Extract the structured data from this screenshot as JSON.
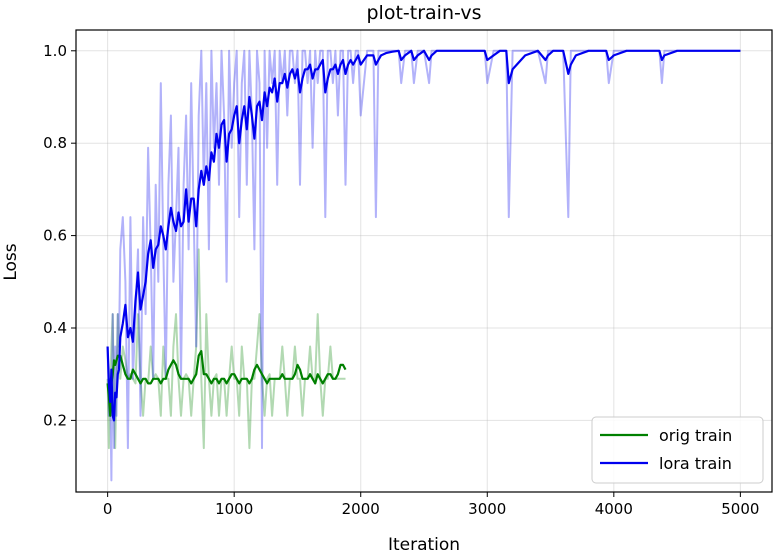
{
  "chart_data": {
    "type": "line",
    "title": "plot-train-vs",
    "xlabel": "Iteration",
    "ylabel": "Loss",
    "xlim": [
      -250,
      5250
    ],
    "ylim": [
      0.045,
      1.045
    ],
    "xticks": [
      0,
      1000,
      2000,
      3000,
      4000,
      5000
    ],
    "yticks": [
      0.2,
      0.4,
      0.6,
      0.8,
      1.0
    ],
    "xtick_labels": [
      "0",
      "1000",
      "2000",
      "3000",
      "4000",
      "5000"
    ],
    "ytick_labels": [
      "0.2",
      "0.4",
      "0.6",
      "0.8",
      "1.0"
    ],
    "grid": true,
    "legend_position": "bottom-right",
    "legend": [
      "orig train",
      "lora train"
    ],
    "colors": {
      "orig": "#008000",
      "lora": "#0000ee"
    },
    "series": [
      {
        "name": "orig train",
        "color": "#008000",
        "raw_alpha": 0.3,
        "x": [
          0,
          10,
          20,
          30,
          40,
          50,
          60,
          80,
          100,
          120,
          140,
          160,
          180,
          200,
          220,
          240,
          260,
          280,
          300,
          320,
          340,
          360,
          380,
          400,
          420,
          440,
          460,
          480,
          500,
          520,
          540,
          560,
          580,
          600,
          620,
          640,
          660,
          680,
          700,
          720,
          740,
          760,
          780,
          800,
          820,
          840,
          860,
          880,
          900,
          920,
          940,
          960,
          980,
          1000,
          1020,
          1040,
          1060,
          1080,
          1100,
          1120,
          1140,
          1160,
          1180,
          1200,
          1220,
          1240,
          1260,
          1280,
          1300,
          1320,
          1340,
          1360,
          1380,
          1400,
          1420,
          1440,
          1460,
          1480,
          1500,
          1520,
          1540,
          1560,
          1580,
          1600,
          1620,
          1640,
          1660,
          1680,
          1700,
          1720,
          1740,
          1760,
          1780,
          1800,
          1820,
          1840,
          1860,
          1880
        ],
        "raw": [
          0.29,
          0.14,
          0.28,
          0.36,
          0.43,
          0.25,
          0.14,
          0.43,
          0.29,
          0.36,
          0.33,
          0.29,
          0.3,
          0.29,
          0.28,
          0.43,
          0.29,
          0.21,
          0.29,
          0.28,
          0.36,
          0.29,
          0.3,
          0.29,
          0.21,
          0.36,
          0.29,
          0.29,
          0.21,
          0.36,
          0.43,
          0.29,
          0.21,
          0.29,
          0.3,
          0.29,
          0.21,
          0.29,
          0.36,
          0.57,
          0.29,
          0.14,
          0.43,
          0.29,
          0.21,
          0.29,
          0.3,
          0.21,
          0.29,
          0.29,
          0.21,
          0.29,
          0.36,
          0.29,
          0.29,
          0.21,
          0.36,
          0.29,
          0.29,
          0.14,
          0.29,
          0.29,
          0.36,
          0.43,
          0.29,
          0.21,
          0.29,
          0.3,
          0.21,
          0.29,
          0.29,
          0.29,
          0.36,
          0.29,
          0.21,
          0.29,
          0.29,
          0.36,
          0.29,
          0.29,
          0.21,
          0.29,
          0.29,
          0.36,
          0.29,
          0.29,
          0.43,
          0.29,
          0.21,
          0.29,
          0.29,
          0.36,
          0.29,
          0.29,
          0.29,
          0.29,
          0.29,
          0.29
        ],
        "smooth": [
          0.28,
          0.25,
          0.21,
          0.28,
          0.3,
          0.33,
          0.32,
          0.34,
          0.34,
          0.32,
          0.3,
          0.29,
          0.29,
          0.31,
          0.3,
          0.29,
          0.28,
          0.29,
          0.29,
          0.28,
          0.28,
          0.29,
          0.29,
          0.29,
          0.28,
          0.29,
          0.29,
          0.31,
          0.32,
          0.33,
          0.32,
          0.3,
          0.29,
          0.29,
          0.29,
          0.29,
          0.28,
          0.29,
          0.3,
          0.34,
          0.35,
          0.3,
          0.3,
          0.29,
          0.28,
          0.29,
          0.29,
          0.28,
          0.29,
          0.29,
          0.28,
          0.29,
          0.3,
          0.3,
          0.29,
          0.28,
          0.29,
          0.29,
          0.29,
          0.28,
          0.29,
          0.31,
          0.32,
          0.31,
          0.3,
          0.29,
          0.28,
          0.29,
          0.29,
          0.29,
          0.29,
          0.29,
          0.3,
          0.29,
          0.29,
          0.29,
          0.29,
          0.3,
          0.32,
          0.31,
          0.29,
          0.29,
          0.29,
          0.3,
          0.29,
          0.28,
          0.3,
          0.29,
          0.28,
          0.29,
          0.3,
          0.3,
          0.29,
          0.29,
          0.3,
          0.32,
          0.32,
          0.31
        ]
      },
      {
        "name": "lora train",
        "color": "#0000ee",
        "raw_alpha": 0.3,
        "x": [
          0,
          10,
          20,
          30,
          40,
          50,
          60,
          70,
          80,
          90,
          100,
          120,
          140,
          160,
          180,
          200,
          220,
          240,
          260,
          280,
          300,
          320,
          340,
          360,
          380,
          400,
          420,
          440,
          460,
          480,
          500,
          520,
          540,
          560,
          580,
          600,
          620,
          640,
          660,
          680,
          700,
          720,
          740,
          760,
          780,
          800,
          820,
          840,
          860,
          880,
          900,
          920,
          940,
          960,
          980,
          1000,
          1020,
          1040,
          1060,
          1080,
          1100,
          1120,
          1140,
          1160,
          1180,
          1200,
          1220,
          1240,
          1260,
          1280,
          1300,
          1320,
          1340,
          1360,
          1380,
          1400,
          1420,
          1440,
          1460,
          1480,
          1500,
          1520,
          1540,
          1560,
          1580,
          1600,
          1620,
          1640,
          1660,
          1680,
          1700,
          1720,
          1740,
          1760,
          1780,
          1800,
          1820,
          1840,
          1860,
          1880,
          1900,
          1920,
          1940,
          1960,
          1980,
          2000,
          2050,
          2100,
          2120,
          2140,
          2160,
          2200,
          2250,
          2300,
          2320,
          2350,
          2400,
          2420,
          2450,
          2500,
          2540,
          2560,
          2600,
          2700,
          2800,
          2900,
          2980,
          3000,
          3050,
          3100,
          3150,
          3170,
          3200,
          3300,
          3400,
          3460,
          3480,
          3520,
          3600,
          3640,
          3660,
          3700,
          3800,
          3900,
          3940,
          3960,
          4000,
          4100,
          4200,
          4300,
          4360,
          4380,
          4400,
          4500,
          4600,
          4700,
          4800,
          4900,
          5000
        ],
        "raw": [
          0.36,
          0.21,
          0.29,
          0.07,
          0.43,
          0.14,
          0.36,
          0.21,
          0.43,
          0.36,
          0.57,
          0.64,
          0.5,
          0.14,
          0.64,
          0.29,
          0.43,
          0.57,
          0.21,
          0.64,
          0.43,
          0.79,
          0.57,
          0.29,
          0.71,
          0.5,
          0.93,
          0.57,
          0.29,
          0.71,
          0.86,
          0.5,
          0.64,
          0.79,
          0.29,
          0.71,
          0.86,
          0.57,
          0.93,
          0.64,
          0.36,
          0.86,
          1.0,
          0.71,
          0.93,
          0.57,
          1.0,
          0.79,
          0.93,
          0.71,
          1.0,
          0.86,
          0.5,
          1.0,
          0.79,
          0.93,
          1.0,
          0.64,
          0.93,
          1.0,
          0.71,
          1.0,
          0.86,
          0.57,
          1.0,
          0.93,
          0.14,
          1.0,
          0.79,
          1.0,
          0.93,
          1.0,
          0.71,
          1.0,
          0.93,
          1.0,
          0.86,
          1.0,
          1.0,
          0.93,
          1.0,
          0.71,
          1.0,
          1.0,
          0.93,
          1.0,
          0.79,
          1.0,
          0.93,
          1.0,
          1.0,
          0.64,
          1.0,
          1.0,
          0.93,
          1.0,
          0.86,
          1.0,
          1.0,
          0.71,
          1.0,
          1.0,
          0.93,
          1.0,
          1.0,
          0.86,
          1.0,
          1.0,
          0.64,
          1.0,
          1.0,
          1.0,
          1.0,
          1.0,
          0.93,
          1.0,
          1.0,
          0.93,
          1.0,
          1.0,
          0.93,
          1.0,
          1.0,
          1.0,
          1.0,
          1.0,
          1.0,
          0.93,
          1.0,
          1.0,
          1.0,
          0.64,
          1.0,
          1.0,
          1.0,
          0.93,
          1.0,
          1.0,
          1.0,
          0.64,
          1.0,
          1.0,
          1.0,
          1.0,
          1.0,
          0.93,
          1.0,
          1.0,
          1.0,
          1.0,
          1.0,
          0.93,
          1.0,
          1.0,
          1.0,
          1.0,
          1.0,
          1.0,
          1.0
        ],
        "smooth": [
          0.36,
          0.28,
          0.24,
          0.31,
          0.21,
          0.2,
          0.26,
          0.25,
          0.3,
          0.31,
          0.38,
          0.41,
          0.45,
          0.38,
          0.4,
          0.37,
          0.46,
          0.52,
          0.44,
          0.47,
          0.5,
          0.56,
          0.59,
          0.53,
          0.57,
          0.58,
          0.62,
          0.6,
          0.57,
          0.62,
          0.66,
          0.63,
          0.61,
          0.65,
          0.62,
          0.63,
          0.7,
          0.63,
          0.68,
          0.68,
          0.62,
          0.7,
          0.74,
          0.71,
          0.75,
          0.72,
          0.78,
          0.76,
          0.82,
          0.79,
          0.84,
          0.85,
          0.76,
          0.82,
          0.83,
          0.86,
          0.88,
          0.8,
          0.85,
          0.88,
          0.83,
          0.9,
          0.86,
          0.81,
          0.88,
          0.89,
          0.85,
          0.91,
          0.88,
          0.92,
          0.91,
          0.94,
          0.89,
          0.93,
          0.93,
          0.95,
          0.92,
          0.95,
          0.96,
          0.94,
          0.96,
          0.91,
          0.94,
          0.96,
          0.96,
          0.97,
          0.94,
          0.96,
          0.96,
          0.97,
          0.98,
          0.91,
          0.94,
          0.96,
          0.96,
          0.97,
          0.95,
          0.97,
          0.98,
          0.95,
          0.97,
          0.98,
          0.97,
          0.98,
          0.99,
          0.97,
          0.99,
          0.99,
          0.97,
          0.98,
          0.99,
          0.995,
          0.998,
          1.0,
          0.98,
          0.99,
          1.0,
          0.98,
          0.99,
          1.0,
          0.98,
          0.99,
          1.0,
          1.0,
          1.0,
          1.0,
          1.0,
          0.98,
          0.99,
          1.0,
          1.0,
          0.93,
          0.96,
          0.99,
          1.0,
          0.98,
          0.99,
          1.0,
          1.0,
          0.95,
          0.97,
          0.99,
          1.0,
          1.0,
          1.0,
          0.98,
          0.99,
          1.0,
          1.0,
          1.0,
          1.0,
          0.98,
          0.99,
          1.0,
          1.0,
          1.0,
          1.0,
          1.0,
          1.0
        ]
      }
    ]
  }
}
